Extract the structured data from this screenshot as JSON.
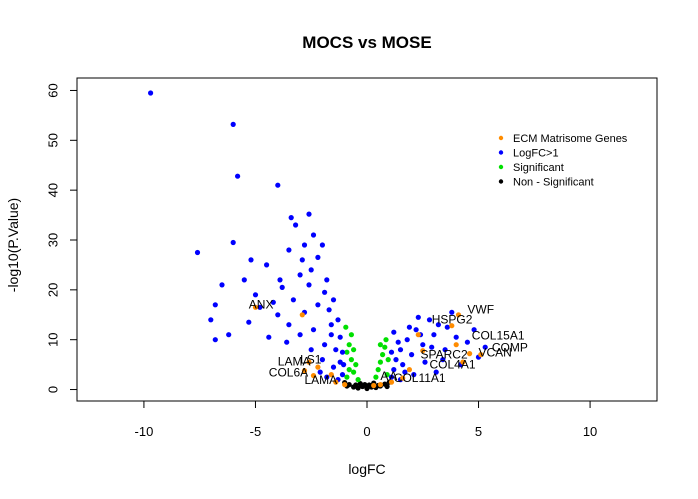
{
  "chart_data": {
    "type": "scatter",
    "title": "MOCS vs MOSE",
    "xlabel": "logFC",
    "ylabel": "-log10(P.Value)",
    "xlim": [
      -13,
      13
    ],
    "ylim": [
      -2.3,
      62.5
    ],
    "x_ticks": [
      -10,
      -5,
      0,
      5,
      10
    ],
    "y_ticks": [
      0,
      10,
      20,
      30,
      40,
      50,
      60
    ],
    "legend": {
      "placement": "top-right",
      "entries": [
        {
          "label": "ECM Matrisome Genes",
          "color": "#FF8C00"
        },
        {
          "label": "LogFC>1",
          "color": "#0000FF"
        },
        {
          "label": "Significant",
          "color": "#00E000"
        },
        {
          "label": "Non - Significant",
          "color": "#000000"
        }
      ]
    },
    "series": [
      {
        "name": "Non - Significant",
        "color": "#000000",
        "points": [
          [
            -0.6,
            0.5
          ],
          [
            -0.4,
            0.3
          ],
          [
            -0.2,
            0.6
          ],
          [
            0.0,
            0.2
          ],
          [
            0.2,
            0.5
          ],
          [
            0.4,
            0.4
          ],
          [
            0.6,
            0.7
          ],
          [
            -0.8,
            1.0
          ],
          [
            0.8,
            1.1
          ],
          [
            -0.5,
            0.9
          ],
          [
            0.5,
            0.8
          ],
          [
            -0.3,
            1.2
          ],
          [
            0.3,
            1.3
          ],
          [
            0.1,
            0.9
          ],
          [
            -0.1,
            1.0
          ],
          [
            0.9,
            0.6
          ],
          [
            -0.9,
            0.7
          ],
          [
            -1.0,
            1.4
          ],
          [
            1.0,
            1.5
          ]
        ]
      },
      {
        "name": "Significant",
        "color": "#00E000",
        "points": [
          [
            -0.9,
            2.5
          ],
          [
            -0.8,
            4.0
          ],
          [
            -0.7,
            6.0
          ],
          [
            -0.6,
            3.5
          ],
          [
            -0.5,
            5.0
          ],
          [
            -0.4,
            2.0
          ],
          [
            -0.9,
            7.5
          ],
          [
            -0.8,
            9.0
          ],
          [
            -0.7,
            11.0
          ],
          [
            -0.95,
            12.5
          ],
          [
            0.4,
            2.5
          ],
          [
            0.5,
            4.0
          ],
          [
            0.6,
            5.5
          ],
          [
            0.7,
            7.0
          ],
          [
            0.8,
            8.5
          ],
          [
            0.9,
            3.0
          ],
          [
            0.95,
            6.0
          ],
          [
            0.85,
            10.0
          ],
          [
            -0.6,
            8.0
          ],
          [
            0.6,
            9.0
          ]
        ]
      },
      {
        "name": "LogFC>1",
        "color": "#0000FF",
        "points": [
          [
            -9.7,
            59.5
          ],
          [
            -6.0,
            53.2
          ],
          [
            -5.8,
            42.8
          ],
          [
            -4.0,
            41.0
          ],
          [
            -7.6,
            27.5
          ],
          [
            -6.0,
            29.5
          ],
          [
            -5.2,
            26.0
          ],
          [
            -3.4,
            34.5
          ],
          [
            -3.2,
            33.0
          ],
          [
            -2.6,
            35.2
          ],
          [
            -2.4,
            31.0
          ],
          [
            -2.8,
            29.0
          ],
          [
            -3.5,
            28.0
          ],
          [
            -4.5,
            25.0
          ],
          [
            -5.5,
            22.0
          ],
          [
            -6.5,
            21.0
          ],
          [
            -7.0,
            14.0
          ],
          [
            -6.8,
            17.0
          ],
          [
            -5.0,
            19.0
          ],
          [
            -4.2,
            17.5
          ],
          [
            -3.8,
            20.5
          ],
          [
            -3.0,
            23.0
          ],
          [
            -2.2,
            26.5
          ],
          [
            -1.8,
            22.0
          ],
          [
            -1.5,
            18.0
          ],
          [
            -1.3,
            14.0
          ],
          [
            -1.2,
            10.5
          ],
          [
            -1.1,
            7.5
          ],
          [
            -1.05,
            5.0
          ],
          [
            -1.1,
            3.0
          ],
          [
            -1.5,
            4.5
          ],
          [
            -2.0,
            6.0
          ],
          [
            -2.5,
            8.0
          ],
          [
            -3.0,
            11.0
          ],
          [
            -3.5,
            13.0
          ],
          [
            -4.0,
            15.0
          ],
          [
            -2.8,
            15.5
          ],
          [
            -2.2,
            17.0
          ],
          [
            -1.7,
            16.0
          ],
          [
            -1.6,
            11.0
          ],
          [
            -1.9,
            9.0
          ],
          [
            -2.4,
            12.0
          ],
          [
            -3.3,
            18.0
          ],
          [
            -2.6,
            21.0
          ],
          [
            -1.4,
            8.0
          ],
          [
            -1.2,
            5.5
          ],
          [
            -6.2,
            11.0
          ],
          [
            -5.3,
            13.5
          ],
          [
            -4.8,
            16.5
          ],
          [
            -3.6,
            9.5
          ],
          [
            -2.1,
            3.5
          ],
          [
            -1.8,
            2.5
          ],
          [
            -1.3,
            2.0
          ],
          [
            -4.4,
            10.5
          ],
          [
            -3.9,
            22.0
          ],
          [
            -2.9,
            26.0
          ],
          [
            -2.0,
            29.0
          ],
          [
            -2.5,
            24.0
          ],
          [
            -1.9,
            19.5
          ],
          [
            -1.6,
            13.0
          ],
          [
            -6.8,
            10.0
          ],
          [
            1.1,
            2.5
          ],
          [
            1.2,
            4.0
          ],
          [
            1.3,
            6.0
          ],
          [
            1.5,
            8.0
          ],
          [
            1.8,
            10.0
          ],
          [
            2.2,
            12.0
          ],
          [
            2.8,
            14.0
          ],
          [
            3.2,
            13.0
          ],
          [
            2.0,
            7.0
          ],
          [
            1.6,
            5.0
          ],
          [
            2.5,
            9.0
          ],
          [
            3.0,
            11.0
          ],
          [
            3.5,
            8.0
          ],
          [
            4.0,
            10.5
          ],
          [
            4.5,
            9.5
          ],
          [
            5.0,
            6.5
          ],
          [
            5.3,
            8.5
          ],
          [
            4.8,
            12.0
          ],
          [
            3.8,
            15.5
          ],
          [
            2.4,
            11.0
          ],
          [
            1.7,
            3.5
          ],
          [
            1.4,
            9.5
          ],
          [
            1.9,
            12.5
          ],
          [
            2.6,
            5.5
          ],
          [
            3.4,
            6.0
          ],
          [
            1.2,
            11.5
          ],
          [
            2.1,
            3.0
          ],
          [
            3.1,
            3.5
          ],
          [
            4.2,
            5.0
          ],
          [
            1.5,
            2.0
          ],
          [
            2.9,
            8.5
          ],
          [
            3.6,
            12.5
          ],
          [
            1.1,
            7.5
          ],
          [
            2.3,
            14.5
          ]
        ]
      },
      {
        "name": "ECM Matrisome Genes",
        "color": "#FF8C00",
        "points": [
          [
            -5.0,
            16.5
          ],
          [
            -2.9,
            15.0
          ],
          [
            -2.6,
            5.5
          ],
          [
            -2.2,
            4.5
          ],
          [
            -2.8,
            3.8
          ],
          [
            -2.4,
            2.8
          ],
          [
            -1.6,
            3.0
          ],
          [
            -1.4,
            1.5
          ],
          [
            -1.0,
            1.0
          ],
          [
            0.3,
            0.8
          ],
          [
            0.6,
            1.0
          ],
          [
            1.1,
            1.5
          ],
          [
            1.6,
            2.3
          ],
          [
            2.3,
            11.0
          ],
          [
            2.5,
            7.8
          ],
          [
            3.8,
            12.8
          ],
          [
            4.1,
            15.0
          ],
          [
            4.0,
            9.0
          ],
          [
            4.3,
            5.5
          ],
          [
            4.6,
            7.2
          ],
          [
            5.1,
            7.0
          ],
          [
            1.9,
            4.0
          ]
        ]
      }
    ],
    "annotations": [
      {
        "text": "VWF",
        "x": 4.5,
        "y": 15.3
      },
      {
        "text": "HSPG2",
        "x": 2.9,
        "y": 13.2
      },
      {
        "text": "COL15A1",
        "x": 4.7,
        "y": 10.0
      },
      {
        "text": "COMP",
        "x": 5.6,
        "y": 7.6
      },
      {
        "text": "VCAN",
        "x": 5.0,
        "y": 6.6
      },
      {
        "text": "ANX",
        "x": -5.3,
        "y": 16.3
      },
      {
        "text": "LAMA",
        "x": -4.0,
        "y": 4.8
      },
      {
        "text": "LS1",
        "x": -3.0,
        "y": 5.2
      },
      {
        "text": "COL6A",
        "x": -4.4,
        "y": 2.6
      },
      {
        "text": "LAMA",
        "x": -2.8,
        "y": 1.1
      },
      {
        "text": "SPARC2",
        "x": 2.4,
        "y": 6.2
      },
      {
        "text": "COL4A1",
        "x": 2.8,
        "y": 4.2
      },
      {
        "text": "COL11A1",
        "x": 1.2,
        "y": 1.5
      },
      {
        "text": "A",
        "x": 0.6,
        "y": 1.9
      },
      {
        "text": "A",
        "x": 1.0,
        "y": 1.9
      }
    ]
  }
}
